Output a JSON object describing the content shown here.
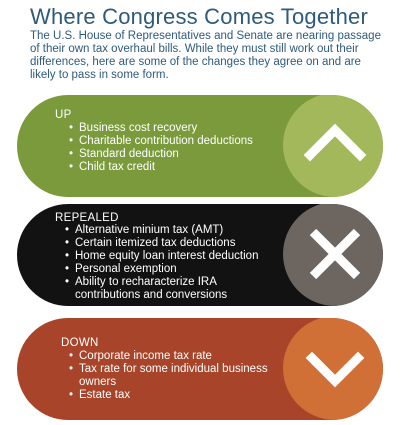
{
  "title": "Where Congress Comes Together",
  "intro": "The U.S. House of Representatives and Senate are nearing passage of their own tax overhaul bills. While they must still work out their differences, here are some of the changes they agree on and are likely to pass in some form.",
  "sections": [
    {
      "label": "UP",
      "color": "#7a9a3c",
      "icon": "chevron-up-icon",
      "items": [
        "Business cost recovery",
        "Charitable contribution deductions",
        "Standard deduction",
        "Child tax credit"
      ]
    },
    {
      "label": "REPEALED",
      "color": "#121212",
      "icon": "x-icon",
      "items": [
        "Alternative minium tax (AMT)",
        "Certain itemized tax deductions",
        "Home equity loan interest deduction",
        "Personal exemption",
        "Ability to recharacterize IRA contributions and conversions"
      ]
    },
    {
      "label": "DOWN",
      "color": "#a8442a",
      "icon": "chevron-down-icon",
      "items": [
        "Corporate income tax rate",
        "Tax rate for some individual business owners",
        "Estate tax"
      ]
    }
  ]
}
